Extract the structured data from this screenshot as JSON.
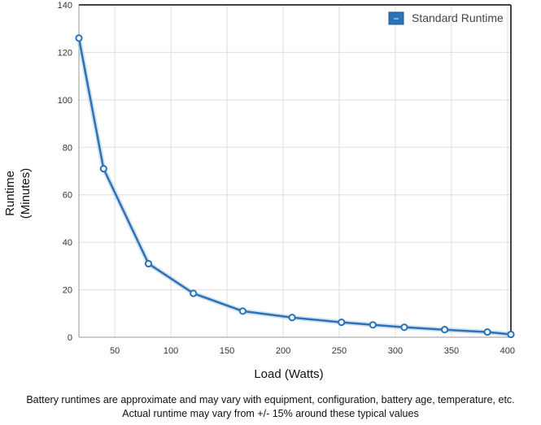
{
  "chart_data": {
    "type": "line",
    "xlabel": "Load (Watts)",
    "ylabel": [
      "Runtime",
      "(Minutes)"
    ],
    "xlim": [
      18,
      403
    ],
    "ylim": [
      0,
      140
    ],
    "x_ticks": [
      50,
      100,
      150,
      200,
      250,
      300,
      350,
      400
    ],
    "y_ticks": [
      0,
      20,
      40,
      60,
      80,
      100,
      120,
      140
    ],
    "grid": true,
    "legend_position": "top-right",
    "series": [
      {
        "name": "Standard Runtime",
        "color": "#2a73b8",
        "legend_symbol": "−",
        "x": [
          18,
          40,
          80,
          120,
          164,
          208,
          252,
          280,
          308,
          344,
          382,
          403
        ],
        "y": [
          126,
          71,
          31,
          18.5,
          11,
          8.3,
          6.3,
          5.2,
          4.2,
          3.2,
          2.2,
          1.2
        ]
      }
    ]
  },
  "footnotes": [
    "Battery runtimes are approximate and may vary with equipment, configuration, battery age, temperature, etc.",
    "Actual runtime may vary from +/- 15% around these typical values"
  ]
}
